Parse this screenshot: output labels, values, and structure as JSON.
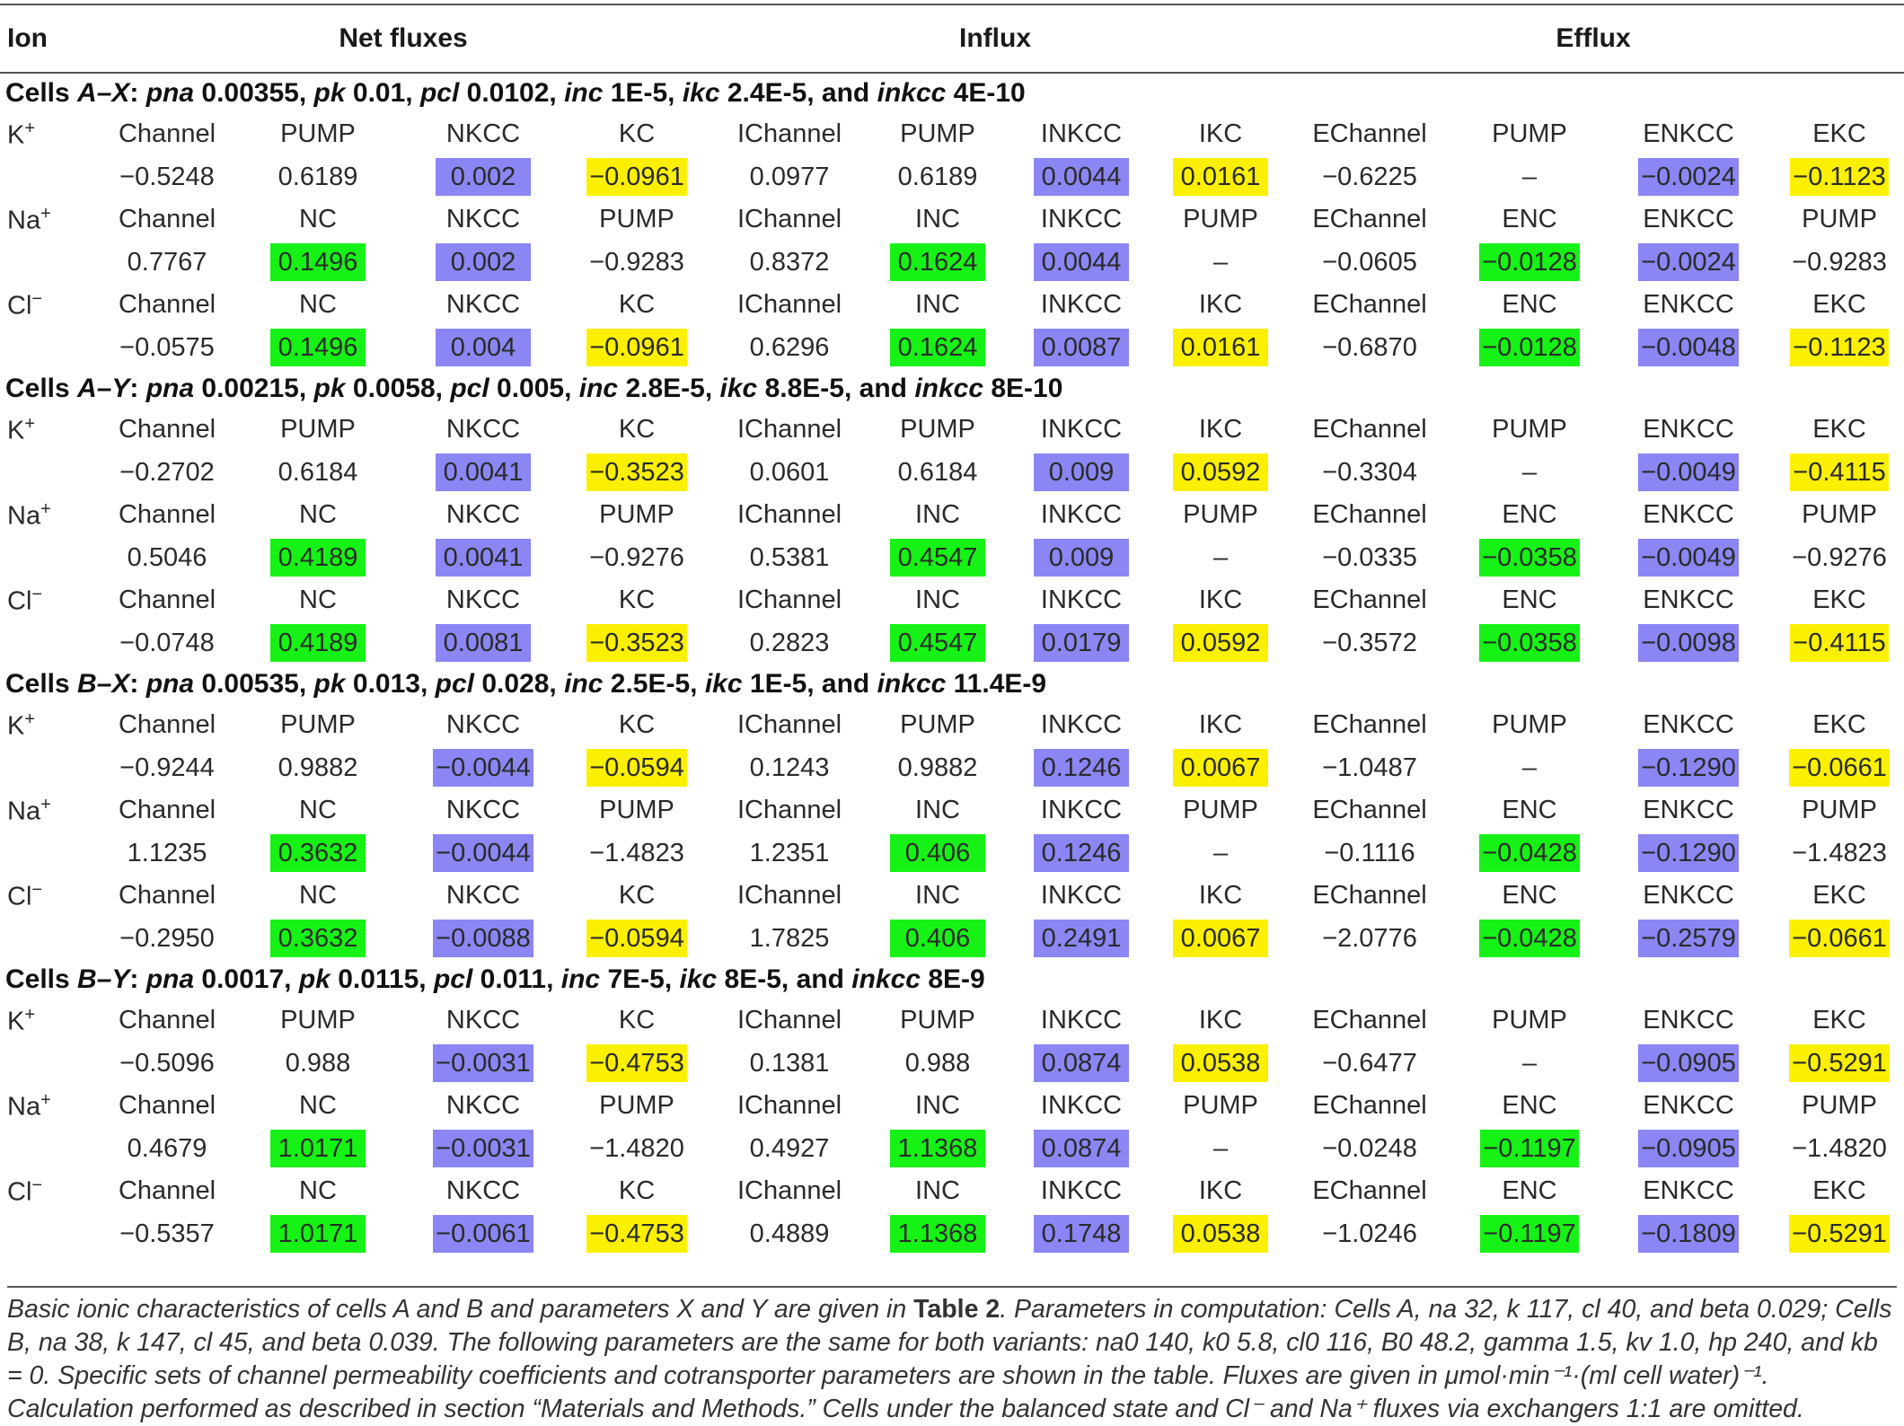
{
  "header": {
    "ion": "Ion",
    "net": "Net fluxes",
    "influx": "Influx",
    "efflux": "Efflux"
  },
  "sets": [
    {
      "title": [
        "Cells ",
        "A–X",
        ": ",
        "pna",
        " 0.00355, ",
        "pk",
        " 0.01, ",
        "pcl",
        " 0.0102, ",
        "inc",
        " 1E-5, ",
        "ikc",
        " 2.4E-5, and ",
        "inkcc",
        " 4E-10"
      ],
      "rows": [
        [
          "K+",
          "Channel",
          "PUMP",
          "NKCC",
          "KC",
          "IChannel",
          "PUMP",
          "INKCC",
          "IKC",
          "EChannel",
          "PUMP",
          "ENKCC",
          "EKC"
        ],
        [
          "",
          "−0.5248",
          "0.6189",
          "0.002",
          "−0.0961",
          "0.0977",
          "0.6189",
          "0.0044",
          "0.0161",
          "−0.6225",
          "–",
          "−0.0024",
          "−0.1123"
        ],
        [
          "Na+",
          "Channel",
          "NC",
          "NKCC",
          "PUMP",
          "IChannel",
          "INC",
          "INKCC",
          "PUMP",
          "EChannel",
          "ENC",
          "ENKCC",
          "PUMP"
        ],
        [
          "",
          "0.7767",
          "0.1496",
          "0.002",
          "−0.9283",
          "0.8372",
          "0.1624",
          "0.0044",
          "–",
          "−0.0605",
          "−0.0128",
          "−0.0024",
          "−0.9283"
        ],
        [
          "Cl−",
          "Channel",
          "NC",
          "NKCC",
          "KC",
          "IChannel",
          "INC",
          "INKCC",
          "IKC",
          "EChannel",
          "ENC",
          "ENKCC",
          "EKC"
        ],
        [
          "",
          "−0.0575",
          "0.1496",
          "0.004",
          "−0.0961",
          "0.6296",
          "0.1624",
          "0.0087",
          "0.0161",
          "−0.6870",
          "−0.0128",
          "−0.0048",
          "−0.1123"
        ]
      ]
    },
    {
      "title": [
        "Cells ",
        "A–Y",
        ": ",
        "pna",
        " 0.00215, ",
        "pk",
        " 0.0058, ",
        "pcl",
        " 0.005, ",
        "inc",
        " 2.8E-5, ",
        "ikc",
        " 8.8E-5, and ",
        "inkcc",
        " 8E-10"
      ],
      "rows": [
        [
          "K+",
          "Channel",
          "PUMP",
          "NKCC",
          "KC",
          "IChannel",
          "PUMP",
          "INKCC",
          "IKC",
          "EChannel",
          "PUMP",
          "ENKCC",
          "EKC"
        ],
        [
          "",
          "−0.2702",
          "0.6184",
          "0.0041",
          "−0.3523",
          "0.0601",
          "0.6184",
          "0.009",
          "0.0592",
          "−0.3304",
          "–",
          "−0.0049",
          "−0.4115"
        ],
        [
          "Na+",
          "Channel",
          "NC",
          "NKCC",
          "PUMP",
          "IChannel",
          "INC",
          "INKCC",
          "PUMP",
          "EChannel",
          "ENC",
          "ENKCC",
          "PUMP"
        ],
        [
          "",
          "0.5046",
          "0.4189",
          "0.0041",
          "−0.9276",
          "0.5381",
          "0.4547",
          "0.009",
          "–",
          "−0.0335",
          "−0.0358",
          "−0.0049",
          "−0.9276"
        ],
        [
          "Cl−",
          "Channel",
          "NC",
          "NKCC",
          "KC",
          "IChannel",
          "INC",
          "INKCC",
          "IKC",
          "EChannel",
          "ENC",
          "ENKCC",
          "EKC"
        ],
        [
          "",
          "−0.0748",
          "0.4189",
          "0.0081",
          "−0.3523",
          "0.2823",
          "0.4547",
          "0.0179",
          "0.0592",
          "−0.3572",
          "−0.0358",
          "−0.0098",
          "−0.4115"
        ]
      ]
    },
    {
      "title": [
        "Cells ",
        "B–X",
        ": ",
        "pna",
        " 0.00535, ",
        "pk",
        " 0.013, ",
        "pcl",
        " 0.028, ",
        "inc",
        " 2.5E-5, ",
        "ikc",
        " 1E-5, and ",
        "inkcc",
        " 11.4E-9"
      ],
      "rows": [
        [
          "K+",
          "Channel",
          "PUMP",
          "NKCC",
          "KC",
          "IChannel",
          "PUMP",
          "INKCC",
          "IKC",
          "EChannel",
          "PUMP",
          "ENKCC",
          "EKC"
        ],
        [
          "",
          "−0.9244",
          "0.9882",
          "−0.0044",
          "−0.0594",
          "0.1243",
          "0.9882",
          "0.1246",
          "0.0067",
          "−1.0487",
          "–",
          "−0.1290",
          "−0.0661"
        ],
        [
          "Na+",
          "Channel",
          "NC",
          "NKCC",
          "PUMP",
          "IChannel",
          "INC",
          "INKCC",
          "PUMP",
          "EChannel",
          "ENC",
          "ENKCC",
          "PUMP"
        ],
        [
          "",
          "1.1235",
          "0.3632",
          "−0.0044",
          "−1.4823",
          "1.2351",
          "0.406",
          "0.1246",
          "–",
          "−0.1116",
          "−0.0428",
          "−0.1290",
          "−1.4823"
        ],
        [
          "Cl−",
          "Channel",
          "NC",
          "NKCC",
          "KC",
          "IChannel",
          "INC",
          "INKCC",
          "IKC",
          "EChannel",
          "ENC",
          "ENKCC",
          "EKC"
        ],
        [
          "",
          "−0.2950",
          "0.3632",
          "−0.0088",
          "−0.0594",
          "1.7825",
          "0.406",
          "0.2491",
          "0.0067",
          "−2.0776",
          "−0.0428",
          "−0.2579",
          "−0.0661"
        ]
      ]
    },
    {
      "title": [
        "Cells ",
        "B–Y",
        ": ",
        "pna",
        " 0.0017, ",
        "pk",
        " 0.0115, ",
        "pcl",
        " 0.011, ",
        "inc",
        " 7E-5, ",
        "ikc",
        " 8E-5, and ",
        "inkcc",
        " 8E-9"
      ],
      "rows": [
        [
          "K+",
          "Channel",
          "PUMP",
          "NKCC",
          "KC",
          "IChannel",
          "PUMP",
          "INKCC",
          "IKC",
          "EChannel",
          "PUMP",
          "ENKCC",
          "EKC"
        ],
        [
          "",
          "−0.5096",
          "0.988",
          "−0.0031",
          "−0.4753",
          "0.1381",
          "0.988",
          "0.0874",
          "0.0538",
          "−0.6477",
          "–",
          "−0.0905",
          "−0.5291"
        ],
        [
          "Na+",
          "Channel",
          "NC",
          "NKCC",
          "PUMP",
          "IChannel",
          "INC",
          "INKCC",
          "PUMP",
          "EChannel",
          "ENC",
          "ENKCC",
          "PUMP"
        ],
        [
          "",
          "0.4679",
          "1.0171",
          "−0.0031",
          "−1.4820",
          "0.4927",
          "1.1368",
          "0.0874",
          "–",
          "−0.0248",
          "−0.1197",
          "−0.0905",
          "−1.4820"
        ],
        [
          "Cl−",
          "Channel",
          "NC",
          "NKCC",
          "KC",
          "IChannel",
          "INC",
          "INKCC",
          "IKC",
          "EChannel",
          "ENC",
          "ENKCC",
          "EKC"
        ],
        [
          "",
          "−0.5357",
          "1.0171",
          "−0.0061",
          "−0.4753",
          "0.4889",
          "1.1368",
          "0.1748",
          "0.0538",
          "−1.0246",
          "−0.1197",
          "−0.1809",
          "−0.5291"
        ]
      ]
    }
  ],
  "highlight_colors": {
    "nkcc": "#8b86f3",
    "kc": "#fbf000",
    "nc": "#16f216"
  },
  "caption": {
    "p1": "Basic ionic characteristics of cells A and B and parameters X and Y are given in ",
    "ref": "Table 2",
    "p2": ". Parameters in computation: Cells A, na 32, k 117, cl 40, and beta 0.029; Cells B, na 38, k 147, cl 45, and beta 0.039. The following parameters are the same for both variants: na0 140, k0 5.8, cl0 116, B0 48.2, gamma 1.5, kv 1.0, hp 240, and kb = 0. Specific sets of channel permeability coefficients and cotransporter parameters are shown in the table. Fluxes are given in μmol·min⁻¹·(ml cell water)⁻¹. Calculation performed as described in section “Materials and Methods.” Cells under the balanced state and Cl⁻ and Na⁺ fluxes via exchangers 1:1 are omitted."
  }
}
